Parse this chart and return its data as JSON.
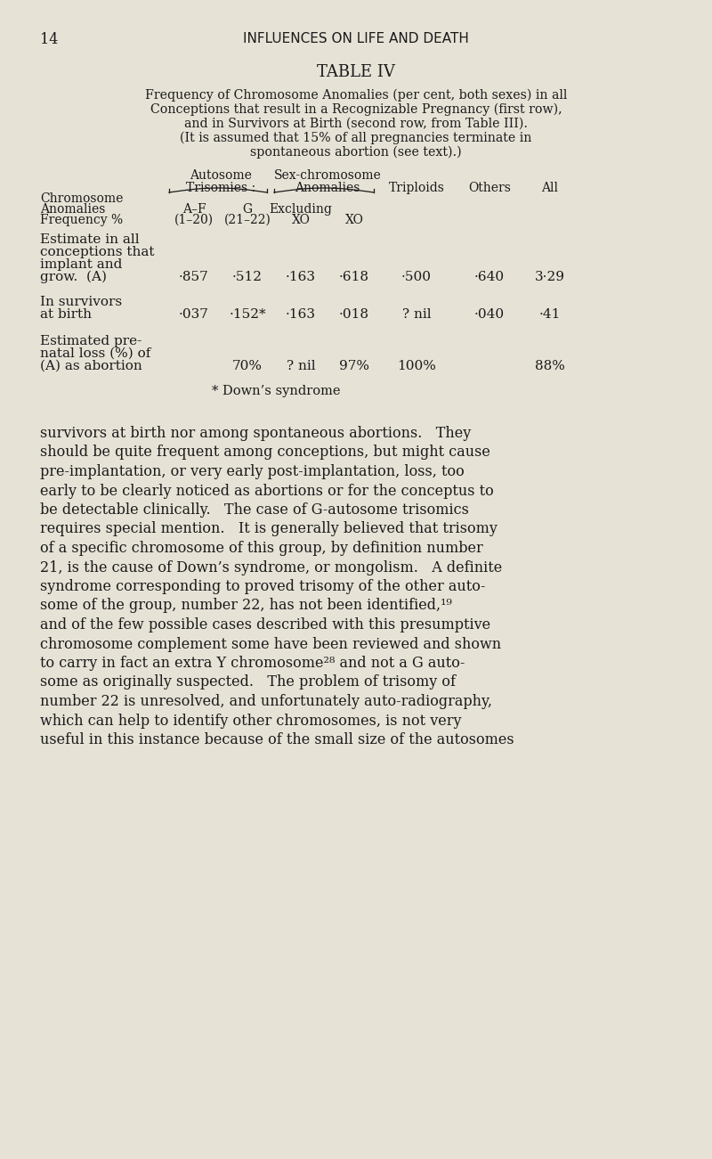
{
  "bg_color": "#e6e2d6",
  "text_color": "#1a1a1a",
  "page_number": "14",
  "header": "INFLUENCES ON LIFE AND DEATH",
  "table_title": "TABLE IV",
  "caption_lines": [
    "Frequency of Chromosome Anomalies (per cent, both sexes) in all",
    "Conceptions that result in a Recognizable Pregnancy (first row),",
    "and in Survivors at Birth (second row, from Table III).",
    "(It is assumed that 15% of all pregnancies terminate in",
    "spontaneous abortion (see text).)"
  ],
  "col_header_row1_left": "Autosome",
  "col_header_row1_right": "Sex-chromosome",
  "col_header_row2_left": "Trisomies :",
  "col_header_row2_right": "Anomalies",
  "col_header_row2_far": [
    "Triploids",
    "Others",
    "All"
  ],
  "col_sub_left": [
    "A–F",
    "G"
  ],
  "col_sub_right": [
    "Excluding",
    ""
  ],
  "col_sub_xo": [
    "XO",
    "XO"
  ],
  "row_label_col": [
    "Chromosome",
    "Anomalies",
    "Frequency %"
  ],
  "data_rows": [
    {
      "label": [
        "Estimate in all",
        "conceptions that",
        "implant and",
        "grow.  (A)"
      ],
      "values": [
        "·857",
        "·512",
        "·163",
        "·618",
        "·500",
        "·640",
        "3·29"
      ]
    },
    {
      "label": [
        "In survivors",
        "at birth"
      ],
      "values": [
        "·037",
        "·152*",
        "·163",
        "·018",
        "? nil",
        "·040",
        "·41"
      ]
    },
    {
      "label": [
        "Estimated pre-",
        "natal loss (%) of",
        "(A) as abortion"
      ],
      "values": [
        "",
        "70%",
        "? nil",
        "97%",
        "100%",
        "",
        "88%"
      ]
    }
  ],
  "footnote": "* Down’s syndrome",
  "body_lines": [
    "survivors at birth nor among spontaneous abortions.   They",
    "should be quite frequent among conceptions, but might cause",
    "pre-implantation, or very early post-implantation, loss, too",
    "early to be clearly noticed as abortions or for the conceptus to",
    "be detectable clinically.   The case of G-autosome trisomics",
    "requires special mention.   It is generally believed that trisomy",
    "of a specific chromosome of this group, by definition number",
    "21, is the cause of Down’s syndrome, or mongolism.   A definite",
    "syndrome corresponding to proved trisomy of the other auto-",
    "some of the group, number 22, has not been identified,¹⁹",
    "and of the few possible cases described with this presumptive",
    "chromosome complement some have been reviewed and shown",
    "to carry in fact an extra Y chromosome²⁸ and not a G auto-",
    "some as originally suspected.   The problem of trisomy of",
    "number 22 is unresolved, and unfortunately auto-radiography,",
    "which can help to identify other chromosomes, is not very",
    "useful in this instance because of the small size of the autosomes"
  ]
}
